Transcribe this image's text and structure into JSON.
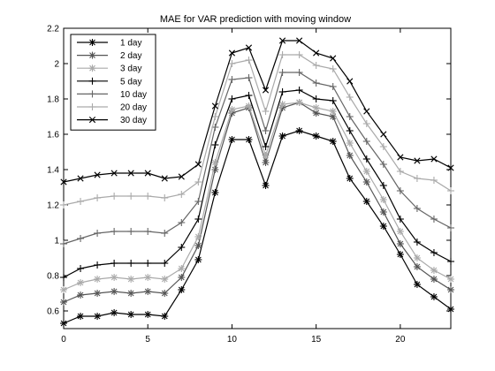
{
  "chart_data": {
    "type": "line",
    "title": "MAE for VAR prediction with moving window",
    "xlabel": "",
    "ylabel": "",
    "xlim": [
      0,
      23
    ],
    "ylim": [
      0.5,
      2.2
    ],
    "xticks": [
      0,
      5,
      10,
      15,
      20
    ],
    "yticks": [
      0.6,
      0.8,
      1,
      1.2,
      1.4,
      1.6,
      1.8,
      2,
      2.2
    ],
    "grid": false,
    "legend_position": "top-left",
    "x": [
      0,
      1,
      2,
      3,
      4,
      5,
      6,
      7,
      8,
      9,
      10,
      11,
      12,
      13,
      14,
      15,
      16,
      17,
      18,
      19,
      20,
      21,
      22,
      23
    ],
    "series": [
      {
        "name": "1 day",
        "color": "#000000",
        "marker": "asterisk",
        "values": [
          0.53,
          0.57,
          0.57,
          0.59,
          0.58,
          0.58,
          0.57,
          0.72,
          0.89,
          1.27,
          1.57,
          1.57,
          1.31,
          1.59,
          1.62,
          1.59,
          1.56,
          1.35,
          1.22,
          1.08,
          0.92,
          0.75,
          0.68,
          0.61
        ]
      },
      {
        "name": "2 day",
        "color": "#555555",
        "marker": "asterisk",
        "values": [
          0.65,
          0.69,
          0.7,
          0.71,
          0.7,
          0.71,
          0.7,
          0.79,
          0.97,
          1.4,
          1.72,
          1.75,
          1.44,
          1.75,
          1.78,
          1.72,
          1.7,
          1.48,
          1.33,
          1.16,
          0.98,
          0.85,
          0.78,
          0.72
        ]
      },
      {
        "name": "3 day",
        "color": "#aaaaaa",
        "marker": "asterisk",
        "values": [
          0.72,
          0.76,
          0.78,
          0.79,
          0.78,
          0.79,
          0.78,
          0.84,
          1.02,
          1.44,
          1.74,
          1.76,
          1.48,
          1.77,
          1.78,
          1.75,
          1.73,
          1.55,
          1.39,
          1.23,
          1.05,
          0.9,
          0.83,
          0.78
        ]
      },
      {
        "name": "5 day",
        "color": "#000000",
        "marker": "plus",
        "values": [
          0.79,
          0.84,
          0.86,
          0.87,
          0.87,
          0.87,
          0.87,
          0.96,
          1.12,
          1.54,
          1.8,
          1.82,
          1.53,
          1.84,
          1.85,
          1.8,
          1.79,
          1.62,
          1.46,
          1.31,
          1.12,
          0.99,
          0.93,
          0.88
        ]
      },
      {
        "name": "10 day",
        "color": "#666666",
        "marker": "plus",
        "values": [
          0.98,
          1.01,
          1.04,
          1.05,
          1.05,
          1.05,
          1.04,
          1.1,
          1.22,
          1.64,
          1.91,
          1.92,
          1.62,
          1.95,
          1.95,
          1.89,
          1.87,
          1.7,
          1.56,
          1.43,
          1.28,
          1.18,
          1.12,
          1.07
        ]
      },
      {
        "name": "20 day",
        "color": "#aaaaaa",
        "marker": "plus",
        "values": [
          1.2,
          1.22,
          1.24,
          1.25,
          1.25,
          1.25,
          1.24,
          1.26,
          1.33,
          1.7,
          2.0,
          2.02,
          1.73,
          2.05,
          2.05,
          1.99,
          1.97,
          1.81,
          1.66,
          1.53,
          1.39,
          1.35,
          1.34,
          1.28
        ]
      },
      {
        "name": "30 day",
        "color": "#000000",
        "marker": "cross",
        "values": [
          1.33,
          1.35,
          1.37,
          1.38,
          1.38,
          1.38,
          1.35,
          1.36,
          1.43,
          1.76,
          2.06,
          2.09,
          1.85,
          2.13,
          2.13,
          2.06,
          2.03,
          1.9,
          1.73,
          1.6,
          1.47,
          1.45,
          1.46,
          1.41
        ]
      }
    ]
  }
}
